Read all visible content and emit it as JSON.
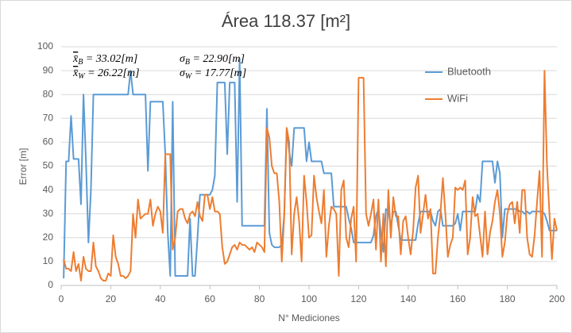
{
  "chart_data": {
    "type": "line",
    "title": "Área 118.37 [m²]",
    "x_label": "N° Mediciones",
    "y_label": "Error [m]",
    "xlim": [
      0,
      200
    ],
    "xticks": [
      0,
      20,
      40,
      60,
      80,
      100,
      120,
      140,
      160,
      180,
      200
    ],
    "ylim": [
      0,
      100
    ],
    "yticks": [
      0,
      10,
      20,
      30,
      40,
      50,
      60,
      70,
      80,
      90,
      100
    ],
    "grid": true,
    "annotations": [
      {
        "symbol": "x̄",
        "sub": "B",
        "value": " = 33.02[m]"
      },
      {
        "symbol": "x̄",
        "sub": "W",
        "value": " = 26.22[m]"
      },
      {
        "symbol": "σ",
        "sub": "B",
        "value": " = 22.90[m]"
      },
      {
        "symbol": "σ",
        "sub": "W",
        "value": " = 17.77[m]"
      }
    ],
    "x": [
      1,
      2,
      3,
      4,
      5,
      6,
      7,
      8,
      9,
      10,
      11,
      12,
      13,
      14,
      15,
      16,
      17,
      18,
      19,
      20,
      21,
      22,
      23,
      24,
      25,
      26,
      27,
      28,
      29,
      30,
      31,
      32,
      33,
      34,
      35,
      36,
      37,
      38,
      39,
      40,
      41,
      42,
      43,
      44,
      45,
      46,
      47,
      48,
      49,
      50,
      51,
      52,
      53,
      54,
      55,
      56,
      57,
      58,
      59,
      60,
      61,
      62,
      63,
      64,
      65,
      66,
      67,
      68,
      69,
      70,
      71,
      72,
      73,
      74,
      75,
      76,
      77,
      78,
      79,
      80,
      81,
      82,
      83,
      84,
      85,
      86,
      87,
      88,
      89,
      90,
      91,
      92,
      93,
      94,
      95,
      96,
      97,
      98,
      99,
      100,
      101,
      102,
      103,
      104,
      105,
      106,
      107,
      108,
      109,
      110,
      111,
      112,
      113,
      114,
      115,
      116,
      117,
      118,
      119,
      120,
      121,
      122,
      123,
      124,
      125,
      126,
      127,
      128,
      129,
      130,
      131,
      132,
      133,
      134,
      135,
      136,
      137,
      138,
      139,
      140,
      141,
      142,
      143,
      144,
      145,
      146,
      147,
      148,
      149,
      150,
      151,
      152,
      153,
      154,
      155,
      156,
      157,
      158,
      159,
      160,
      161,
      162,
      163,
      164,
      165,
      166,
      167,
      168,
      169,
      170,
      171,
      172,
      173,
      174,
      175,
      176,
      177,
      178,
      179,
      180,
      181,
      182,
      183,
      184,
      185,
      186,
      187,
      188,
      189,
      190,
      191,
      192,
      193,
      194,
      195,
      196,
      197,
      198,
      199,
      200
    ],
    "series": [
      {
        "name": "Bluetooth",
        "color": "#5b9bd5",
        "values": [
          3,
          52,
          52,
          71,
          53,
          53,
          53,
          34,
          80,
          52,
          18,
          40,
          80,
          80,
          80,
          80,
          80,
          80,
          80,
          80,
          80,
          80,
          80,
          80,
          80,
          80,
          80,
          90,
          80,
          80,
          80,
          80,
          80,
          80,
          48,
          77,
          77,
          77,
          77,
          77,
          77,
          55,
          22,
          4,
          77,
          4,
          4,
          4,
          4,
          4,
          4,
          28,
          4,
          4,
          20,
          38,
          38,
          38,
          38,
          38,
          40,
          46,
          85,
          85,
          85,
          85,
          55,
          85,
          85,
          85,
          35,
          95,
          25,
          25,
          25,
          25,
          25,
          25,
          25,
          25,
          25,
          25,
          74,
          22,
          17,
          16,
          16,
          16,
          17,
          30,
          66,
          56,
          50,
          66,
          66,
          66,
          66,
          66,
          52,
          60,
          52,
          52,
          52,
          52,
          52,
          47,
          47,
          47,
          47,
          33,
          33,
          33,
          33,
          33,
          33,
          28,
          24,
          18,
          18,
          18,
          18,
          18,
          18,
          18,
          18,
          21,
          29,
          32,
          22,
          14,
          32,
          31,
          25,
          31,
          31,
          25,
          19,
          19,
          19,
          19,
          19,
          19,
          19,
          26,
          31,
          31,
          31,
          31,
          31,
          27,
          25,
          31,
          32,
          25,
          25,
          25,
          25,
          25,
          26,
          30,
          23,
          31,
          31,
          31,
          31,
          31,
          31,
          38,
          35,
          52,
          52,
          52,
          52,
          52,
          43,
          52,
          47,
          20,
          32,
          32,
          32,
          32,
          32,
          32,
          31,
          31,
          30,
          31,
          30,
          31,
          31,
          31,
          31,
          31,
          30,
          27,
          23,
          23,
          23,
          23
        ]
      },
      {
        "name": "WiFi",
        "color": "#ed7d31",
        "values": [
          11,
          7,
          7,
          6,
          14,
          6,
          9,
          2,
          12,
          7,
          6,
          6,
          18,
          8,
          6,
          3,
          2,
          2,
          5,
          4,
          21,
          12,
          9,
          4,
          4,
          3,
          4,
          6,
          30,
          20,
          36,
          28,
          29,
          30,
          30,
          36,
          25,
          30,
          33,
          31,
          22,
          55,
          55,
          55,
          15,
          20,
          31,
          32,
          32,
          28,
          26,
          30,
          31,
          29,
          35,
          29,
          27,
          38,
          38,
          32,
          37,
          31,
          31,
          30,
          16,
          9,
          10,
          13,
          16,
          17,
          15,
          18,
          17,
          17,
          16,
          15,
          16,
          14,
          18,
          17,
          16,
          14,
          66,
          62,
          50,
          47,
          47,
          35,
          10,
          29,
          66,
          60,
          13,
          30,
          37,
          27,
          10,
          46,
          35,
          20,
          21,
          46,
          37,
          31,
          26,
          40,
          12,
          25,
          33,
          32,
          30,
          4,
          40,
          44,
          20,
          16,
          28,
          33,
          10,
          87,
          87,
          87,
          30,
          25,
          30,
          36,
          15,
          36,
          10,
          30,
          8,
          40,
          20,
          37,
          29,
          29,
          13,
          27,
          29,
          20,
          13,
          23,
          41,
          46,
          22,
          30,
          38,
          28,
          32,
          5,
          5,
          20,
          30,
          45,
          30,
          12,
          17,
          20,
          41,
          40,
          41,
          40,
          44,
          13,
          20,
          37,
          29,
          30,
          21,
          12,
          31,
          13,
          22,
          27,
          35,
          40,
          30,
          12,
          18,
          30,
          34,
          35,
          26,
          35,
          22,
          40,
          40,
          20,
          13,
          12,
          21,
          35,
          48,
          12,
          90,
          50,
          30,
          11,
          28,
          23
        ]
      }
    ],
    "legend_position": "upper right"
  }
}
